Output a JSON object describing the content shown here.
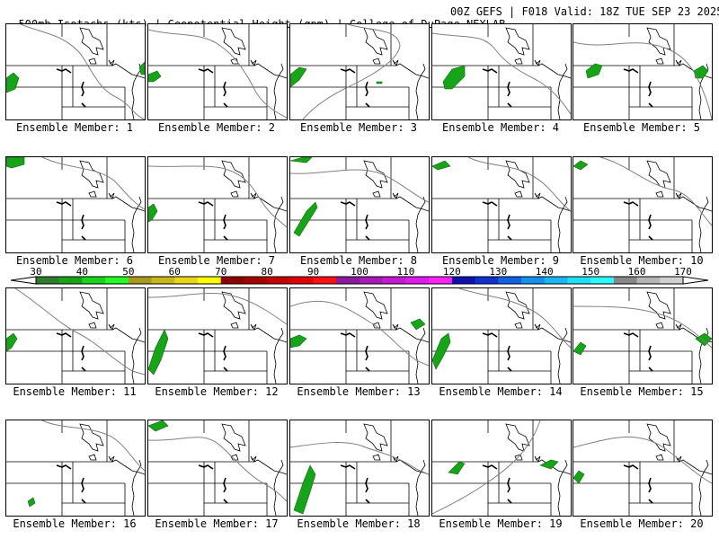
{
  "header": {
    "left": "500mb Isotachs (kts) | Geopotential Height (gpm) | College of DuPage NEXLAB",
    "right": "00Z GEFS | F018 Valid: 18Z TUE SEP 23 2025"
  },
  "colorbar": {
    "labels": [
      "30",
      "40",
      "50",
      "60",
      "70",
      "80",
      "90",
      "100",
      "110",
      "120",
      "130",
      "140",
      "150",
      "160",
      "170"
    ],
    "colors": [
      "#2e7d2e",
      "#18a418",
      "#19d419",
      "#22ff22",
      "#a89820",
      "#c8b818",
      "#e8d818",
      "#ffff00",
      "#8c0000",
      "#a80000",
      "#c40000",
      "#e00000",
      "#ff1010",
      "#8c1a9c",
      "#a81ab8",
      "#c41ad4",
      "#e01af0",
      "#ff22ff",
      "#1010b0",
      "#1030d0",
      "#1060e8",
      "#1490f0",
      "#18b8f8",
      "#20e0ff",
      "#2cffff",
      "#888888",
      "#b4b4b4",
      "#d0d0d0"
    ]
  },
  "panel_label_prefix": "Ensemble Member: ",
  "members": [
    "1",
    "2",
    "3",
    "4",
    "5",
    "6",
    "7",
    "8",
    "9",
    "10",
    "11",
    "12",
    "13",
    "14",
    "15",
    "16",
    "17",
    "18",
    "19",
    "20"
  ]
}
